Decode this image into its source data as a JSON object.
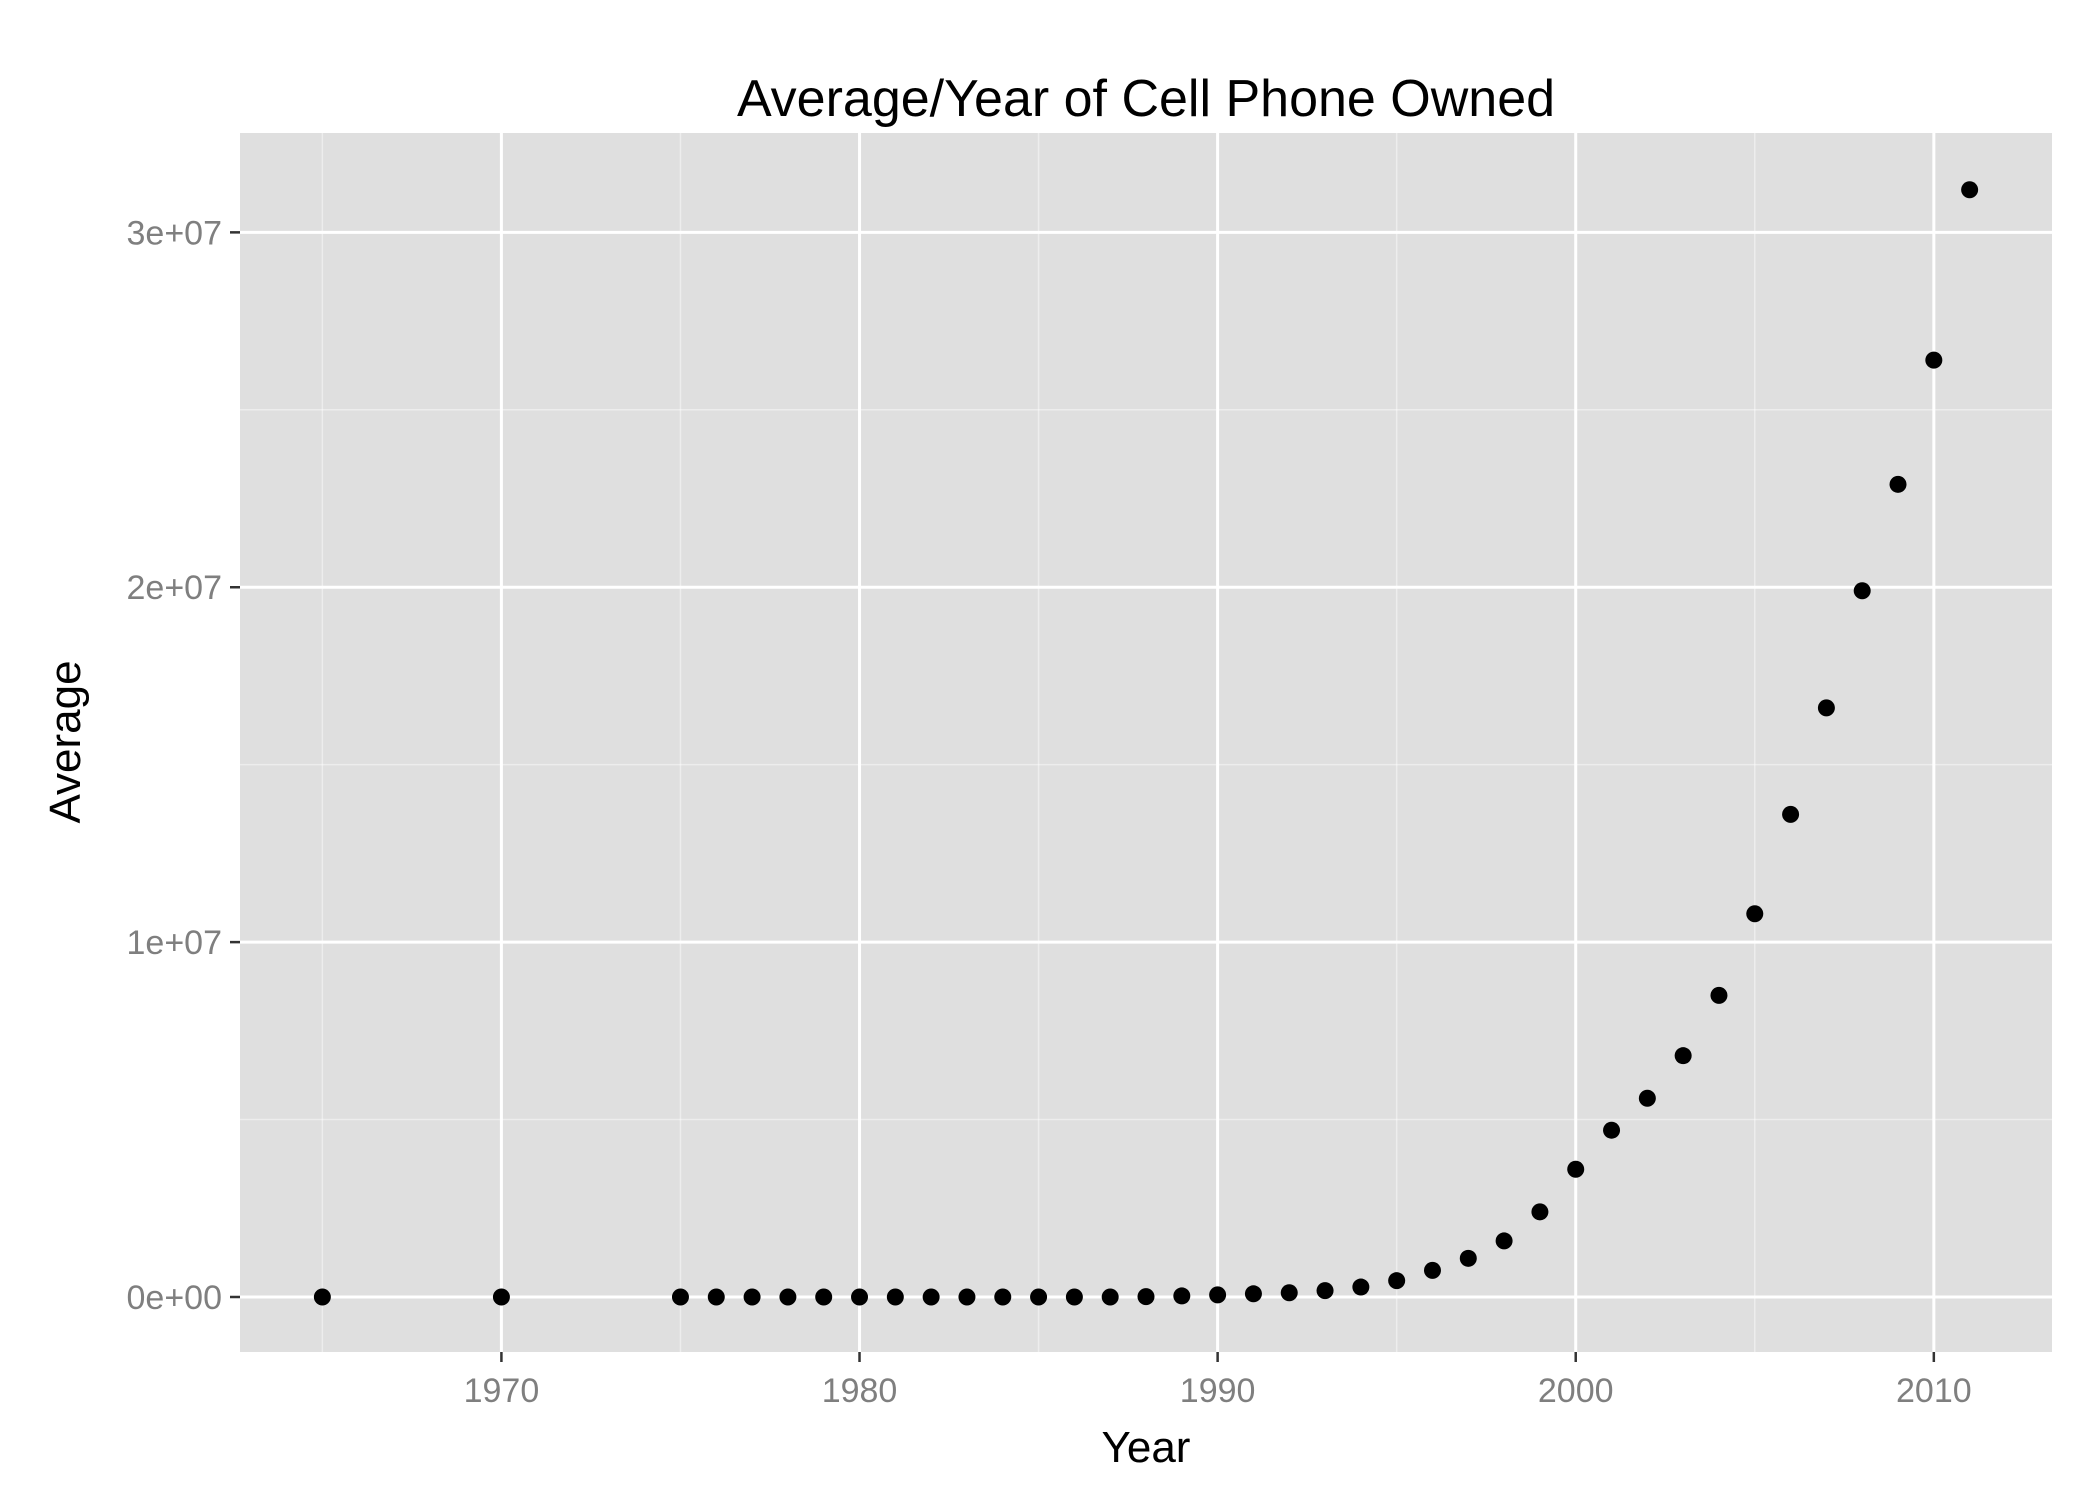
{
  "chart_data": {
    "type": "scatter",
    "title": "Average/Year of Cell Phone Owned",
    "xlabel": "Year",
    "ylabel": "Average",
    "xlim": [
      1962.7,
      2013.3
    ],
    "ylim": [
      -1550000,
      32800000
    ],
    "x_ticks": [
      1970,
      1980,
      1990,
      2000,
      2010
    ],
    "x_tick_labels": [
      "1970",
      "1980",
      "1990",
      "2000",
      "2010"
    ],
    "y_ticks": [
      0,
      10000000,
      20000000,
      30000000
    ],
    "y_tick_labels": [
      "0e+00",
      "1e+07",
      "2e+07",
      "3e+07"
    ],
    "grid": true,
    "legend": "none",
    "colors": {
      "panel": "#dfdfdf",
      "grid": "#ffffff",
      "points": "#000000",
      "tick_text": "#7f7f7f"
    },
    "series": [
      {
        "x": [
          1965,
          1970,
          1975,
          1976,
          1977,
          1978,
          1979,
          1980,
          1981,
          1982,
          1983,
          1984,
          1985,
          1986,
          1987,
          1988,
          1989,
          1990,
          1991,
          1992,
          1993,
          1994,
          1995,
          1996,
          1997,
          1998,
          1999,
          2000,
          2001,
          2002,
          2003,
          2004,
          2005,
          2006,
          2007,
          2008,
          2009,
          2010,
          2011
        ],
        "y": [
          0,
          0,
          0,
          0,
          0,
          0,
          0,
          0,
          0,
          0,
          0,
          0,
          0,
          0,
          0,
          10000,
          30000,
          60000,
          90000,
          120000,
          180000,
          280000,
          460000,
          750000,
          1090000,
          1580000,
          2400000,
          3600000,
          4700000,
          5600000,
          6800000,
          8500000,
          10800000,
          13600000,
          16600000,
          19900000,
          22900000,
          26400000,
          31200000
        ]
      }
    ]
  }
}
